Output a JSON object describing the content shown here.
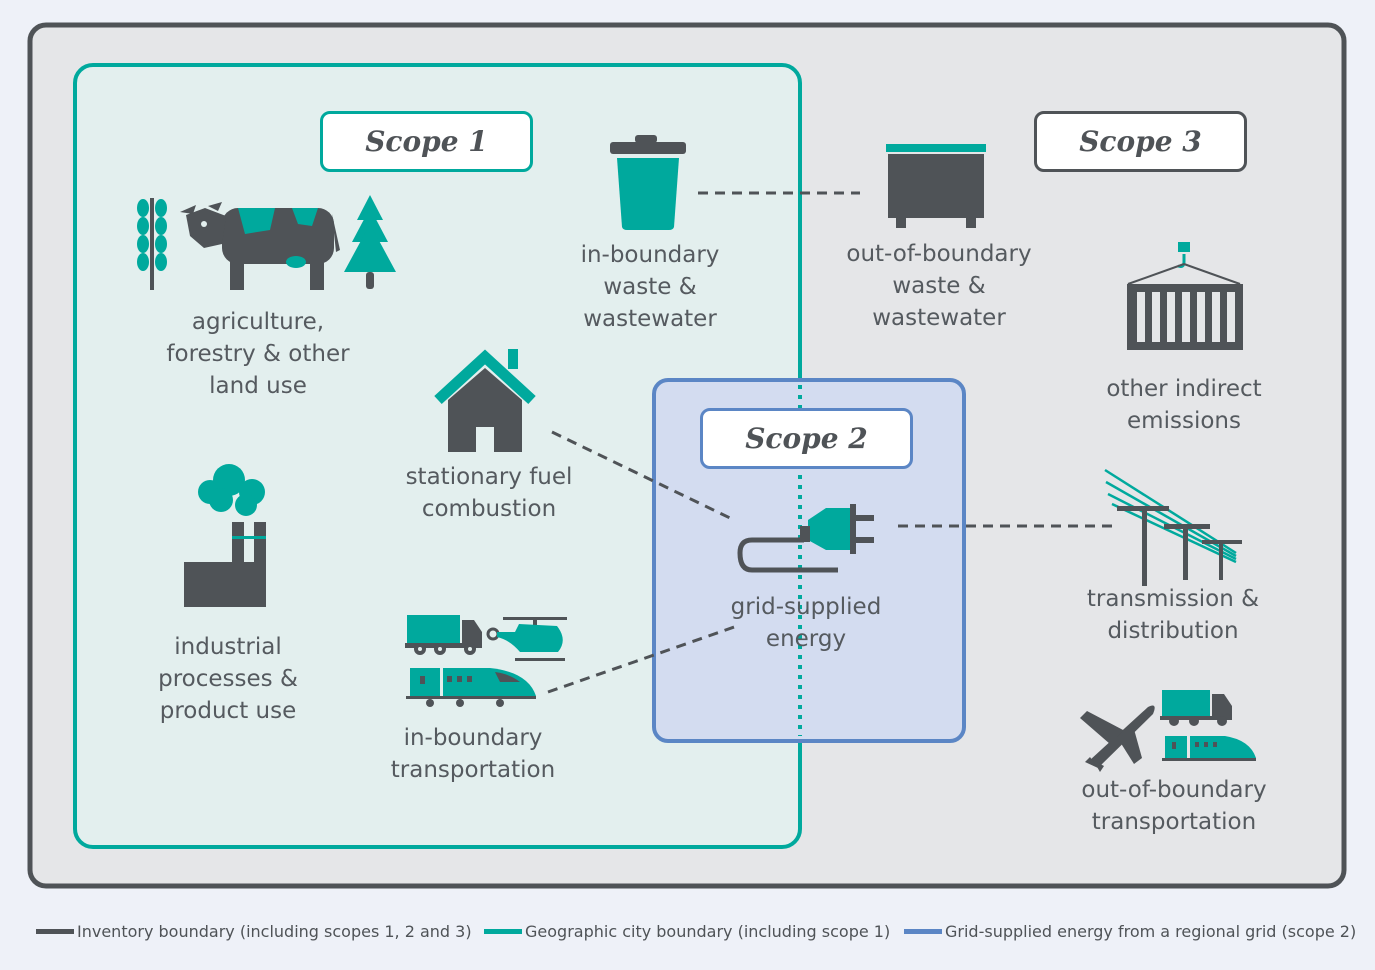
{
  "scopes": {
    "scope1": "Scope 1",
    "scope2": "Scope 2",
    "scope3": "Scope 3"
  },
  "labels": {
    "agriculture": [
      "agriculture,",
      "forestry & other",
      "land use"
    ],
    "in_boundary_waste": [
      "in-boundary",
      "waste &",
      "wastewater"
    ],
    "out_boundary_waste": [
      "out-of-boundary",
      "waste &",
      "wastewater"
    ],
    "stationary": [
      "stationary fuel",
      "combustion"
    ],
    "industrial": [
      "industrial",
      "processes &",
      "product use"
    ],
    "in_transport": [
      "in-boundary",
      "transportation"
    ],
    "grid": [
      "grid-supplied",
      "energy"
    ],
    "other_indirect": [
      "other indirect",
      "emissions"
    ],
    "transmission": [
      "transmission &",
      "distribution"
    ],
    "out_transport": [
      "out-of-boundary",
      "transportation"
    ]
  },
  "legend": [
    {
      "text": "Inventory boundary (including scopes 1, 2 and 3)",
      "color": "#4f5357"
    },
    {
      "text": "Geographic city boundary (including scope 1)",
      "color": "#00a99d"
    },
    {
      "text": "Grid-supplied energy from a regional grid (scope 2)",
      "color": "#5b86c5"
    }
  ],
  "colors": {
    "teal": "#00a99d",
    "gray": "#4f5357",
    "blue": "#5b86c5",
    "outer_bg": "#e5e6e8",
    "city_bg": "#e3efee",
    "grid_bg": "#d3dcf0"
  },
  "icons": [
    "wheat-icon",
    "cow-icon",
    "tree-icon",
    "trash-can-icon",
    "dumpster-icon",
    "container-icon",
    "house-icon",
    "factory-icon",
    "plug-icon",
    "power-line-icon",
    "truck-icon",
    "helicopter-icon",
    "train-icon",
    "airplane-icon"
  ]
}
